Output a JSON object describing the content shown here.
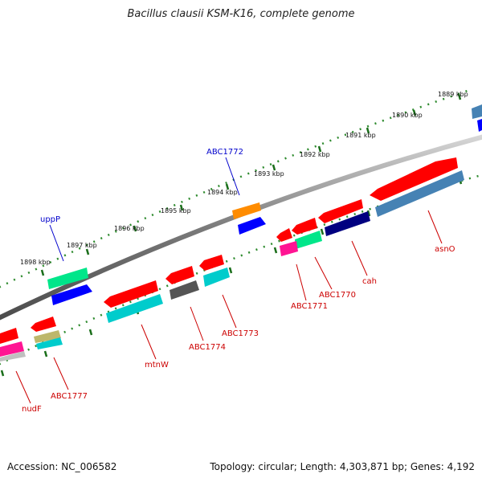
{
  "title": "Bacillus clausii KSM-K16, complete genome",
  "footer": {
    "accession": "Accession: NC_006582",
    "stats": "Topology: circular; Length: 4,303,871 bp; Genes: 4,192"
  },
  "scale_labels": [
    "1889 kbp",
    "1890 kbp",
    "1891 kbp",
    "1892 kbp",
    "1893 kbp",
    "1894 kbp",
    "1895 kbp",
    "1896 kbp",
    "1897 kbp",
    "1898 kbp"
  ],
  "gene_labels": [
    {
      "text": "ABC1772",
      "color": "#0000cc"
    },
    {
      "text": "uppP",
      "color": "#0000cc"
    },
    {
      "text": "asnO",
      "color": "#cc0000"
    },
    {
      "text": "cah",
      "color": "#cc0000"
    },
    {
      "text": "ABC1770",
      "color": "#cc0000"
    },
    {
      "text": "ABC1771",
      "color": "#cc0000"
    },
    {
      "text": "ABC1773",
      "color": "#cc0000"
    },
    {
      "text": "ABC1774",
      "color": "#cc0000"
    },
    {
      "text": "mtnW",
      "color": "#cc0000"
    },
    {
      "text": "ABC1777",
      "color": "#cc0000"
    },
    {
      "text": "nudF",
      "color": "#cc0000"
    }
  ],
  "feature_colors": [
    "#ff0000",
    "#0000ff",
    "#00e68a",
    "#ff8c00",
    "#00cccc",
    "#4682b4",
    "#000080",
    "#555555",
    "#ff1493",
    "#bdb76b",
    "#c0c0c0"
  ]
}
